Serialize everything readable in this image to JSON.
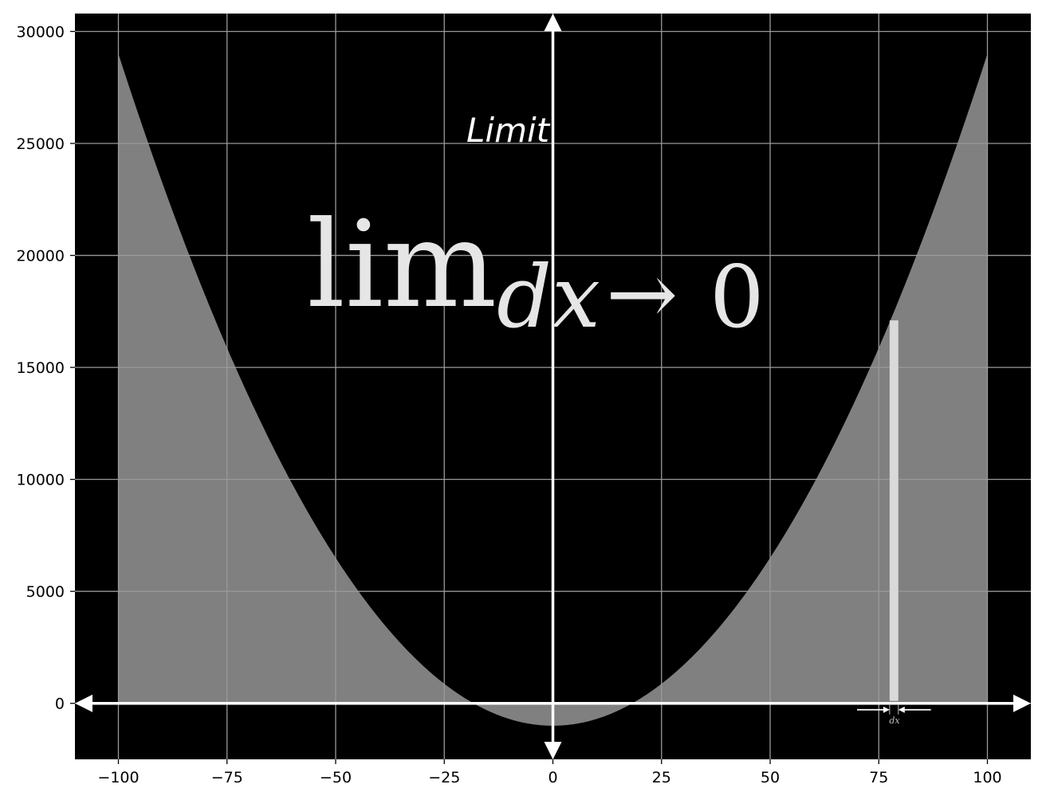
{
  "chart_data": {
    "type": "area",
    "title": "Limit",
    "annotation": {
      "lim": "lim",
      "subscript_var": "dx",
      "subscript_arrow": "→",
      "subscript_target": "0"
    },
    "function": "y = 3x^2 - 1000",
    "xlim": [
      -110,
      110
    ],
    "ylim": [
      -2500,
      30800
    ],
    "xticks": [
      -100,
      -75,
      -50,
      -25,
      0,
      25,
      50,
      75,
      100
    ],
    "xtick_labels": [
      "−100",
      "−75",
      "−50",
      "−25",
      "0",
      "25",
      "50",
      "75",
      "100"
    ],
    "yticks": [
      0,
      5000,
      10000,
      15000,
      20000,
      25000,
      30000
    ],
    "ytick_labels": [
      "0",
      "5000",
      "10000",
      "15000",
      "20000",
      "25000",
      "30000"
    ],
    "fill_range": [
      -100,
      100
    ],
    "curve_vertex": [
      0,
      -1000
    ],
    "curve_ends": [
      [
        -100,
        29000
      ],
      [
        100,
        29000
      ]
    ],
    "highlight_bar": {
      "x_start": 77.5,
      "x_end": 79.5,
      "height": 17100
    },
    "dx_label": "dx",
    "dx_arrows_x": [
      70,
      87
    ],
    "grid": true,
    "background_color": "#000000",
    "fill_color": "#808080",
    "grid_color": "#9a9a9a",
    "axis_color": "#ffffff",
    "bar_color": "#d9d9d9"
  }
}
